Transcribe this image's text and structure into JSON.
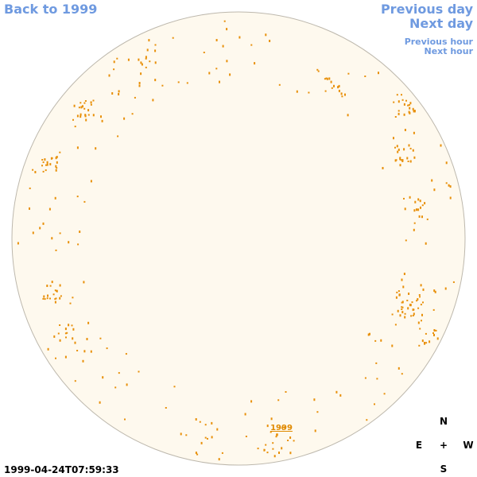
{
  "nav": {
    "back": "Back to 1999",
    "previous_day": "Previous day",
    "next_day": "Next day",
    "previous_hour": "Previous hour",
    "next_hour": "Next hour"
  },
  "disk_label": "1999",
  "timestamp": "1999-04-24T07:59:33",
  "compass": {
    "north": "N",
    "east": "E",
    "center": "+",
    "west": "W",
    "south": "S"
  }
}
